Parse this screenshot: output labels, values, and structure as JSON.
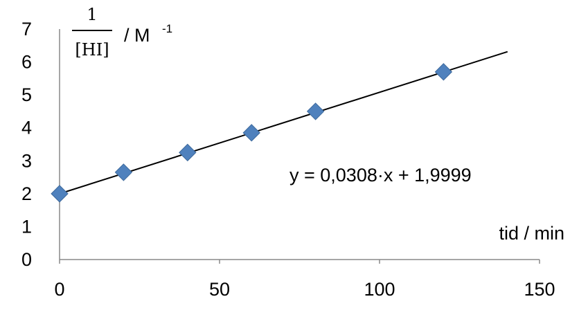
{
  "chart_data": {
    "type": "scatter",
    "x": [
      0,
      20,
      40,
      60,
      80,
      120
    ],
    "y": [
      2.0,
      2.65,
      3.25,
      3.85,
      4.5,
      5.7
    ],
    "xlim": [
      0,
      150
    ],
    "ylim": [
      0,
      7
    ],
    "xticks": [
      "0",
      "50",
      "100",
      "150"
    ],
    "yticks": [
      "0",
      "1",
      "2",
      "3",
      "4",
      "5",
      "6",
      "7"
    ],
    "xlabel": "tid / min",
    "ylabel": {
      "numerator": "1",
      "denominator": "[HI]",
      "unit": "/ M",
      "unit_exponent": "-1"
    },
    "trendline": {
      "slope": 0.0308,
      "intercept": 1.9999,
      "x_range": [
        0,
        140
      ],
      "equation": "y = 0,0308·x + 1,9999"
    },
    "grid": false,
    "legend": "none",
    "marker": "diamond",
    "marker_color": "#4f81bd"
  }
}
